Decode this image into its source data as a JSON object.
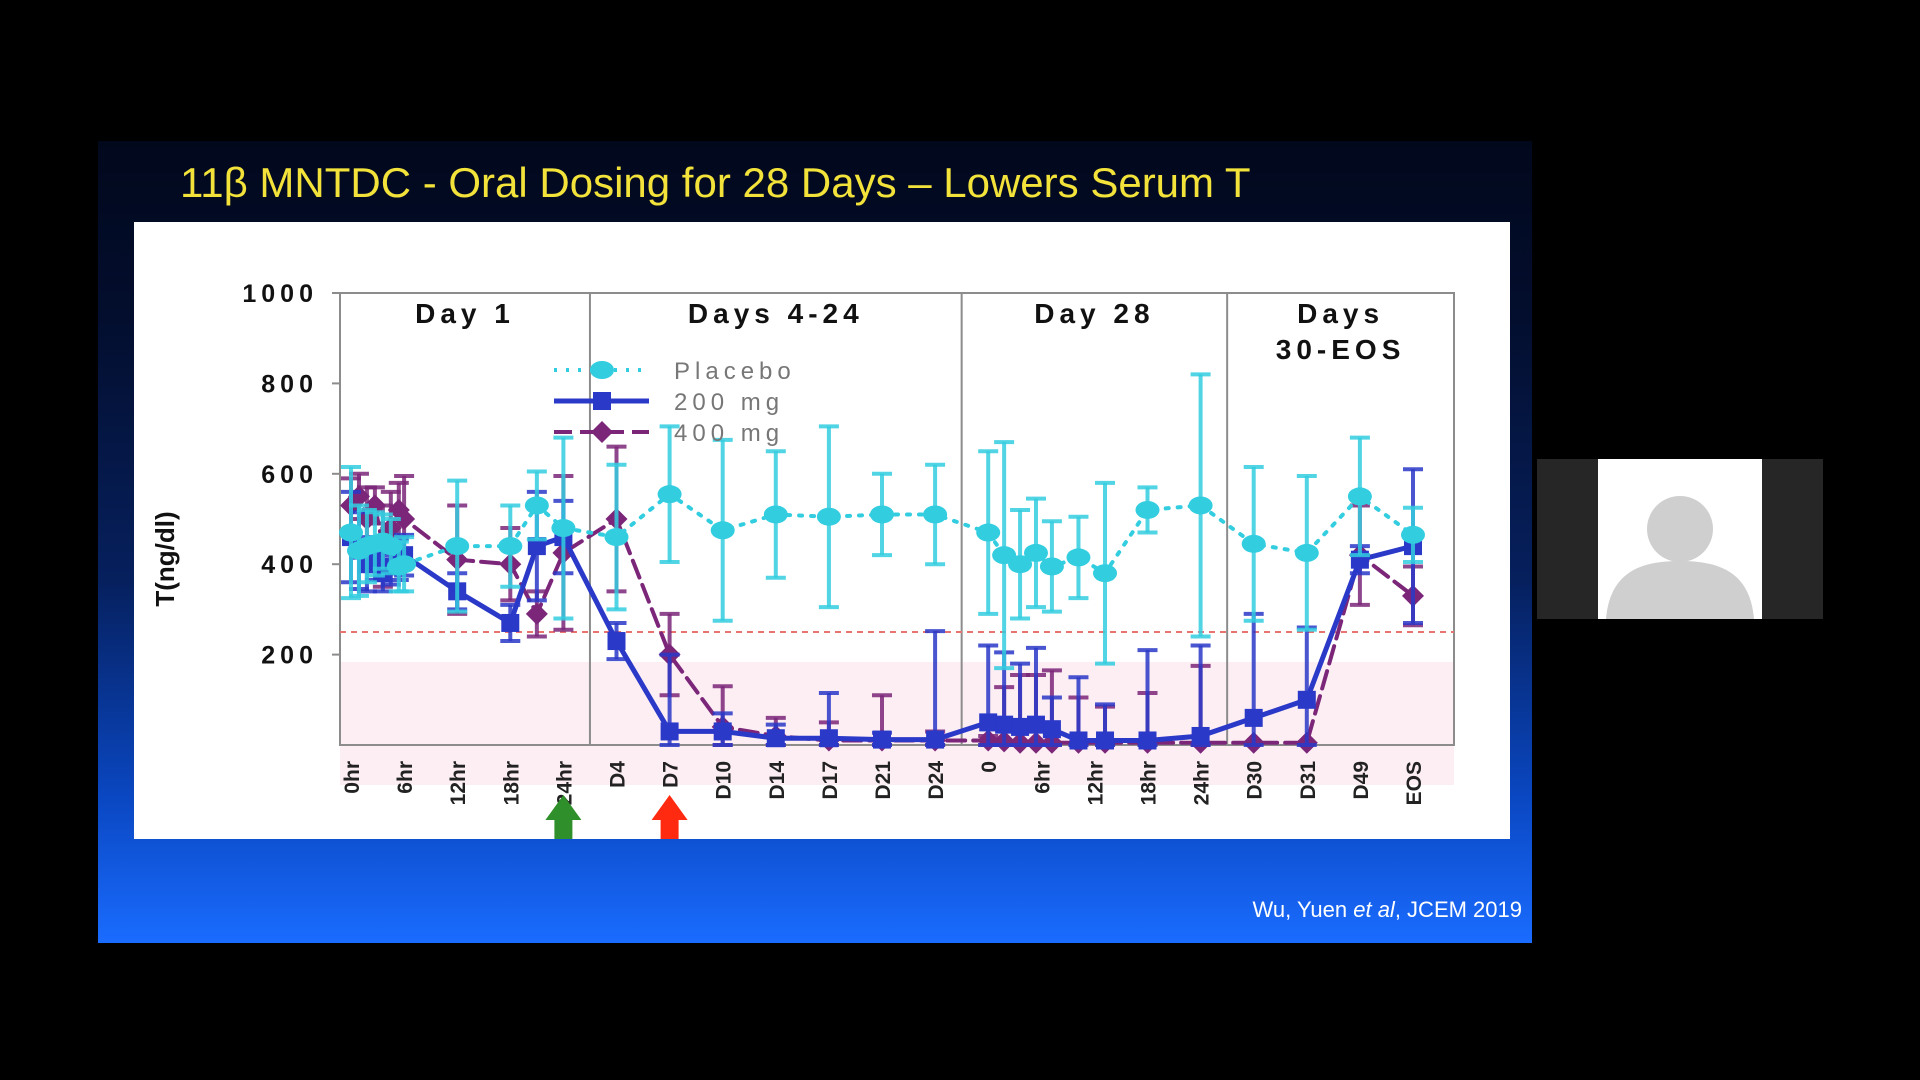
{
  "slide": {
    "title": "11β MNTDC - Oral Dosing for 28 Days – Lowers Serum T",
    "citation": {
      "authors": "Wu, Yuen ",
      "etal": "et al",
      "journal": ", JCEM 2019"
    }
  },
  "colors": {
    "placebo": "#33cde0",
    "mg200": "#2b39c8",
    "mg400": "#7b2679",
    "threshold": "#e8736f",
    "title": "#f2e23a",
    "arrow_red": "#ff2a10",
    "arrow_green": "#2f8f2a"
  },
  "chart_data": {
    "type": "line",
    "ylabel": "T(ng/dl)",
    "ylim": [
      0,
      1000
    ],
    "yticks": [
      200,
      400,
      600,
      800,
      1000
    ],
    "threshold": 250,
    "panels": [
      {
        "label_lines": [
          "Day 1"
        ],
        "start": 0,
        "end": 4
      },
      {
        "label_lines": [
          "Days 4-24"
        ],
        "start": 5,
        "end": 11
      },
      {
        "label_lines": [
          "Day 28"
        ],
        "start": 12,
        "end": 16
      },
      {
        "label_lines": [
          "Days",
          "30-EOS"
        ],
        "start": 17,
        "end": 20
      }
    ],
    "x_tick_labels": [
      "0hr",
      "6hr",
      "12hr",
      "18hr",
      "24hr",
      "D4",
      "D7",
      "D10",
      "D14",
      "D17",
      "D21",
      "D24",
      "0",
      "6hr",
      "12hr",
      "18hr",
      "24hr",
      "D30",
      "D31",
      "D49",
      "EOS"
    ],
    "legend": [
      "Placebo",
      "200 mg",
      "400 mg"
    ],
    "arrows": [
      {
        "at_tick": "D7",
        "color": "red"
      },
      {
        "at_tick": "24hr",
        "color": "green-red"
      }
    ],
    "series": [
      {
        "name": "Placebo",
        "marker": "circle",
        "line": "dotted",
        "points": [
          [
            0.0,
            470,
            145
          ],
          [
            0.15,
            430,
            100
          ],
          [
            0.3,
            440,
            80
          ],
          [
            0.45,
            445,
            70
          ],
          [
            0.6,
            450,
            60
          ],
          [
            0.75,
            440,
            60
          ],
          [
            0.9,
            395,
            55
          ],
          [
            1.0,
            400,
            60
          ],
          [
            2.0,
            440,
            145
          ],
          [
            3.0,
            440,
            90
          ],
          [
            3.5,
            530,
            75
          ],
          [
            4.0,
            480,
            200
          ],
          [
            5.0,
            460,
            160
          ],
          [
            6.0,
            555,
            150
          ],
          [
            7.0,
            475,
            200
          ],
          [
            8.0,
            510,
            140
          ],
          [
            9.0,
            505,
            200
          ],
          [
            10.0,
            510,
            90
          ],
          [
            11.0,
            510,
            110
          ],
          [
            12.0,
            470,
            180
          ],
          [
            12.3,
            420,
            250
          ],
          [
            12.6,
            400,
            120
          ],
          [
            12.9,
            425,
            120
          ],
          [
            13.2,
            395,
            100
          ],
          [
            13.7,
            415,
            90
          ],
          [
            14.2,
            380,
            200
          ],
          [
            15.0,
            520,
            50
          ],
          [
            16.0,
            530,
            290
          ],
          [
            17.0,
            445,
            170
          ],
          [
            18.0,
            425,
            170
          ],
          [
            19.0,
            550,
            130
          ],
          [
            20.0,
            465,
            60
          ]
        ]
      },
      {
        "name": "200 mg",
        "marker": "square",
        "line": "solid",
        "points": [
          [
            0.0,
            460,
            100
          ],
          [
            0.15,
            430,
            85
          ],
          [
            0.3,
            400,
            60
          ],
          [
            0.45,
            410,
            45
          ],
          [
            0.6,
            380,
            40
          ],
          [
            0.75,
            395,
            40
          ],
          [
            0.9,
            410,
            45
          ],
          [
            1.0,
            420,
            45
          ],
          [
            2.0,
            340,
            40
          ],
          [
            3.0,
            270,
            40
          ],
          [
            3.5,
            440,
            120
          ],
          [
            4.0,
            460,
            80
          ],
          [
            5.0,
            230,
            40
          ],
          [
            6.0,
            30,
            170
          ],
          [
            7.0,
            30,
            40
          ],
          [
            8.0,
            15,
            30
          ],
          [
            9.0,
            15,
            100
          ],
          [
            10.0,
            12,
            15
          ],
          [
            11.0,
            12,
            240
          ],
          [
            12.0,
            50,
            170
          ],
          [
            12.3,
            45,
            160
          ],
          [
            12.6,
            40,
            140
          ],
          [
            12.9,
            45,
            170
          ],
          [
            13.2,
            35,
            70
          ],
          [
            13.7,
            10,
            140
          ],
          [
            14.2,
            10,
            80
          ],
          [
            15.0,
            10,
            200
          ],
          [
            16.0,
            20,
            200
          ],
          [
            17.0,
            60,
            230
          ],
          [
            18.0,
            100,
            160
          ],
          [
            19.0,
            410,
            30
          ],
          [
            20.0,
            440,
            170
          ]
        ]
      },
      {
        "name": "400 mg",
        "marker": "diamond",
        "line": "dashed",
        "points": [
          [
            0.0,
            530,
            60
          ],
          [
            0.15,
            550,
            50
          ],
          [
            0.3,
            500,
            70
          ],
          [
            0.45,
            530,
            40
          ],
          [
            0.6,
            440,
            90
          ],
          [
            0.75,
            480,
            80
          ],
          [
            0.9,
            520,
            60
          ],
          [
            1.0,
            500,
            95
          ],
          [
            2.0,
            410,
            120
          ],
          [
            3.0,
            400,
            80
          ],
          [
            3.5,
            290,
            50
          ],
          [
            4.0,
            425,
            170
          ],
          [
            5.0,
            500,
            160
          ],
          [
            6.0,
            200,
            90
          ],
          [
            7.0,
            40,
            90
          ],
          [
            8.0,
            20,
            40
          ],
          [
            9.0,
            10,
            40
          ],
          [
            10.0,
            10,
            100
          ],
          [
            11.0,
            10,
            20
          ],
          [
            12.0,
            10,
            10
          ],
          [
            12.3,
            8,
            120
          ],
          [
            12.6,
            5,
            150
          ],
          [
            12.9,
            5,
            150
          ],
          [
            13.2,
            5,
            160
          ],
          [
            13.7,
            5,
            100
          ],
          [
            14.2,
            5,
            80
          ],
          [
            15.0,
            5,
            110
          ],
          [
            16.0,
            5,
            170
          ],
          [
            17.0,
            5,
            0
          ],
          [
            18.0,
            5,
            0
          ],
          [
            19.0,
            420,
            110
          ],
          [
            20.0,
            330,
            65
          ]
        ]
      }
    ]
  }
}
